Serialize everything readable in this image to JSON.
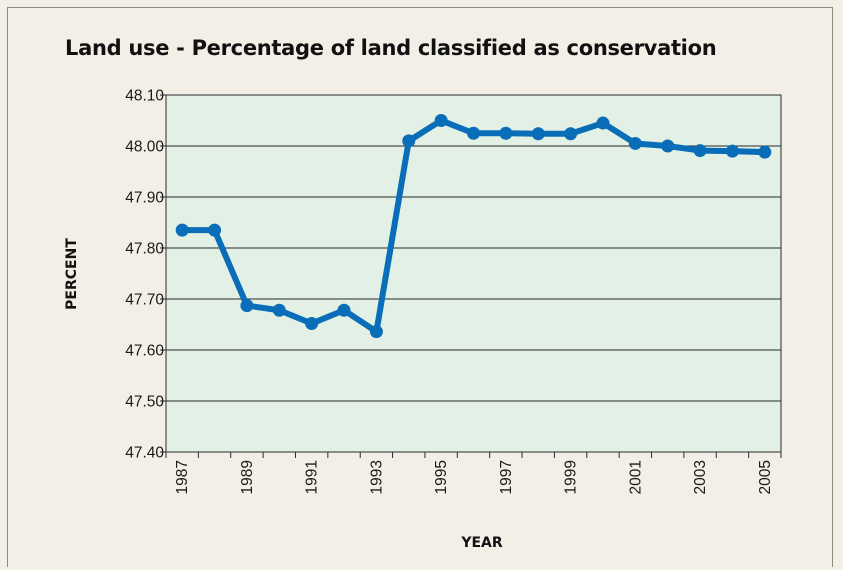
{
  "chart_data": {
    "type": "line",
    "title": "Land use - Percentage of land classified as conservation",
    "xlabel": "YEAR",
    "ylabel": "PERCENT",
    "ylim": [
      47.4,
      48.1
    ],
    "y_ticks": [
      "48.10",
      "48.00",
      "47.90",
      "47.80",
      "47.70",
      "47.60",
      "47.50",
      "47.40"
    ],
    "x_tick_labels": [
      "1987",
      "1989",
      "1991",
      "1993",
      "1995",
      "1997",
      "1999",
      "2001",
      "2003",
      "2005"
    ],
    "x": [
      1987,
      1988,
      1989,
      1990,
      1991,
      1992,
      1993,
      1994,
      1995,
      1996,
      1997,
      1998,
      1999,
      2000,
      2001,
      2002,
      2003,
      2004,
      2005
    ],
    "series": [
      {
        "values": [
          47.835,
          47.835,
          47.687,
          47.678,
          47.652,
          47.678,
          47.636,
          48.01,
          48.05,
          48.025,
          48.025,
          48.024,
          48.024,
          48.045,
          48.005,
          48.0,
          47.991,
          47.99,
          47.988
        ]
      }
    ],
    "grid": "horizontal",
    "colors": {
      "line": "#0a6db7",
      "plot_bg": "#e2f0e5",
      "page_bg": "#f3efe6"
    }
  }
}
